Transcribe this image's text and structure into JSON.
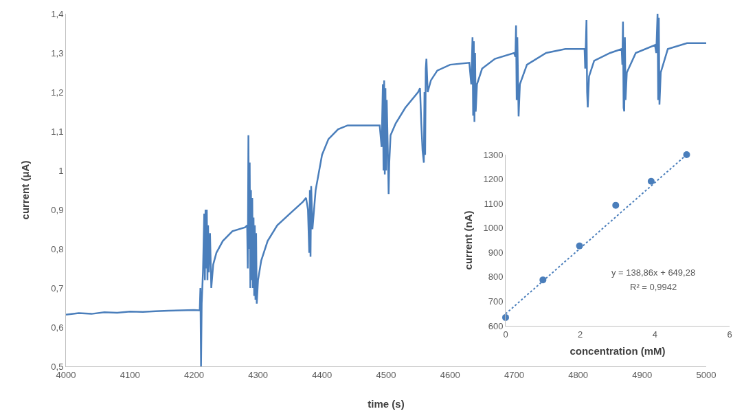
{
  "chart_data": [
    {
      "type": "line",
      "xlabel": "time (s)",
      "ylabel": "current (μA)",
      "color": "#4a7ebb",
      "xlim": [
        4000,
        5000
      ],
      "xticks": [
        4000,
        4100,
        4200,
        4300,
        4400,
        4500,
        4600,
        4700,
        4800,
        4900,
        5000
      ],
      "ylim": [
        0.5,
        1.4
      ],
      "yticks": [
        {
          "value": 0.5,
          "label": "0,5"
        },
        {
          "value": 0.6,
          "label": "0,6"
        },
        {
          "value": 0.7,
          "label": "0,7"
        },
        {
          "value": 0.8,
          "label": "0,8"
        },
        {
          "value": 0.9,
          "label": "0,9"
        },
        1,
        {
          "value": 1.1,
          "label": "1,1"
        },
        {
          "value": 1.2,
          "label": "1,2"
        },
        {
          "value": 1.3,
          "label": "1,3"
        },
        {
          "value": 1.4,
          "label": "1,4"
        }
      ],
      "x": [
        4000,
        4020,
        4040,
        4060,
        4080,
        4100,
        4120,
        4140,
        4160,
        4180,
        4200,
        4209,
        4210,
        4211,
        4212,
        4214,
        4216,
        4217,
        4218,
        4219,
        4220,
        4221,
        4222,
        4223,
        4225,
        4227,
        4230,
        4235,
        4245,
        4260,
        4280,
        4283,
        4284,
        4285,
        4286,
        4287,
        4288,
        4289,
        4290,
        4291,
        4292,
        4293,
        4294,
        4295,
        4296,
        4297,
        4298,
        4300,
        4305,
        4315,
        4330,
        4350,
        4370,
        4375,
        4378,
        4380,
        4381,
        4382,
        4383,
        4385,
        4390,
        4400,
        4410,
        4425,
        4440,
        4470,
        4490,
        4493,
        4495,
        4496,
        4497,
        4498,
        4499,
        4500,
        4501,
        4503,
        4504,
        4505,
        4507,
        4515,
        4530,
        4550,
        4553,
        4555,
        4557,
        4559,
        4560,
        4561,
        4562,
        4563,
        4565,
        4570,
        4580,
        4600,
        4630,
        4633,
        4635,
        4636,
        4637,
        4638,
        4639,
        4640,
        4642,
        4650,
        4670,
        4700,
        4702,
        4703,
        4704,
        4705,
        4707,
        4709,
        4720,
        4750,
        4780,
        4810,
        4811,
        4813,
        4814,
        4815,
        4817,
        4825,
        4850,
        4868,
        4869,
        4870,
        4871,
        4872,
        4873,
        4874,
        4876,
        4890,
        4920,
        4922,
        4924,
        4925,
        4926,
        4927,
        4929,
        4940,
        4970,
        5000
      ],
      "values": [
        0.632,
        0.636,
        0.634,
        0.638,
        0.637,
        0.64,
        0.639,
        0.641,
        0.642,
        0.643,
        0.644,
        0.643,
        0.7,
        0.5,
        0.66,
        0.74,
        0.89,
        0.72,
        0.9,
        0.75,
        0.9,
        0.72,
        0.86,
        0.74,
        0.84,
        0.7,
        0.76,
        0.79,
        0.82,
        0.845,
        0.855,
        0.86,
        0.75,
        1.09,
        0.8,
        1.02,
        0.7,
        0.95,
        0.72,
        0.93,
        0.7,
        0.88,
        0.68,
        0.86,
        0.67,
        0.84,
        0.66,
        0.72,
        0.77,
        0.82,
        0.86,
        0.89,
        0.92,
        0.93,
        0.9,
        0.79,
        0.95,
        0.78,
        0.96,
        0.85,
        0.95,
        1.04,
        1.08,
        1.105,
        1.115,
        1.115,
        1.115,
        1.06,
        1.22,
        1.0,
        1.23,
        0.99,
        1.21,
        1.0,
        1.18,
        1.03,
        0.94,
        1.02,
        1.09,
        1.12,
        1.16,
        1.2,
        1.21,
        1.12,
        1.05,
        1.02,
        1.2,
        1.04,
        1.26,
        1.285,
        1.2,
        1.23,
        1.255,
        1.27,
        1.275,
        1.22,
        1.34,
        1.14,
        1.33,
        1.124,
        1.3,
        1.15,
        1.22,
        1.26,
        1.285,
        1.3,
        1.29,
        1.37,
        1.18,
        1.34,
        1.138,
        1.22,
        1.27,
        1.3,
        1.31,
        1.31,
        1.26,
        1.384,
        1.2,
        1.161,
        1.24,
        1.28,
        1.3,
        1.31,
        1.27,
        1.38,
        1.16,
        1.151,
        1.34,
        1.18,
        1.25,
        1.3,
        1.32,
        1.3,
        1.4,
        1.18,
        1.39,
        1.168,
        1.25,
        1.31,
        1.325,
        1.325
      ]
    },
    {
      "type": "scatter",
      "xlabel": "concentration (mM)",
      "ylabel": "current (nA)",
      "xlim": [
        0,
        6
      ],
      "xticks": [
        0,
        2,
        4,
        6
      ],
      "ylim": [
        600,
        1300
      ],
      "yticks": [
        600,
        700,
        800,
        900,
        1000,
        1100,
        1200,
        1300
      ],
      "annotations": [
        "y = 138,86x + 649,28",
        "R² = 0,9942"
      ],
      "series": [
        {
          "type": "scatter",
          "color": "#4a7ebb",
          "marker": "circle",
          "x": [
            0,
            1,
            1.98,
            2.95,
            3.9,
            4.85
          ],
          "values": [
            634,
            788,
            927,
            1093,
            1191,
            1300
          ]
        },
        {
          "type": "line",
          "color": "#4a7ebb",
          "line_style": "dotted",
          "x": [
            0,
            4.85
          ],
          "values": [
            649,
            1300
          ]
        }
      ]
    }
  ]
}
